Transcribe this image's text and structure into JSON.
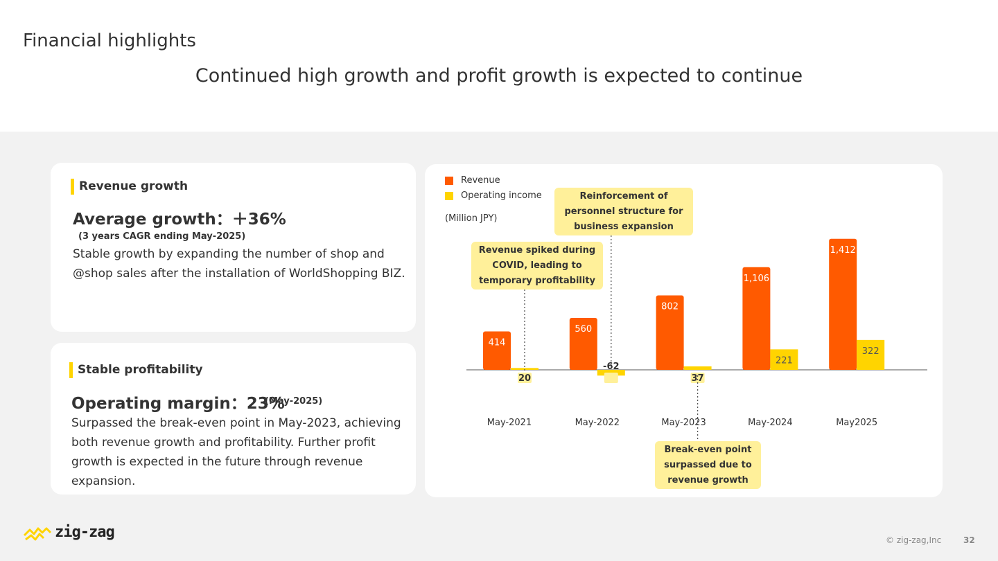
{
  "header": {
    "title": "Financial highlights",
    "subtitle": "Continued high growth and profit growth is expected to continue"
  },
  "revenue_card": {
    "title": "Revenue growth",
    "metric": "Average growth：＋36%",
    "note": "(3 years CAGR ending May-2025)",
    "body": "Stable growth by expanding the number of shop and @shop sales after the installation of WorldShopping BIZ."
  },
  "profit_card": {
    "title": "Stable profitability",
    "metric": "Operating margin：23%",
    "note": "(May-2025)",
    "body": "Surpassed the break-even point in May-2023, achieving both revenue growth and profitability. Further profit growth is expected in the future through revenue expansion."
  },
  "chart_data": {
    "type": "bar",
    "categories": [
      "May-2021",
      "May-2022",
      "May-2023",
      "May-2024",
      "May2025"
    ],
    "series": [
      {
        "name": "Revenue",
        "values": [
          414,
          560,
          802,
          1106,
          1412
        ],
        "color": "#ff5a00"
      },
      {
        "name": "Operating income",
        "values": [
          20,
          -62,
          37,
          221,
          322
        ],
        "color": "#ffd400"
      }
    ],
    "value_labels": {
      "Revenue": [
        "414",
        "560",
        "802",
        "1,106",
        "1,412"
      ],
      "Operating income": [
        "20",
        "-62",
        "37",
        "221",
        "322"
      ]
    },
    "unit": "(Million JPY)",
    "legend_position": "top-left",
    "grid": false,
    "annotations": [
      {
        "text": "Revenue spiked during\nCOVID, leading to\ntemporary profitability",
        "category": "May-2021",
        "series": "Operating income"
      },
      {
        "text": "Reinforcement of\npersonnel structure for\nbusiness expansion",
        "category": "May-2022",
        "series": "Operating income"
      },
      {
        "text": "Break-even point\nsurpassed due to\nrevenue growth",
        "category": "May-2023",
        "series": "Operating income"
      }
    ]
  },
  "footer": {
    "logo_text": "zig-zag",
    "copyright": "© zig-zag,Inc",
    "page_number": "32"
  },
  "colors": {
    "accent_orange": "#ff5a00",
    "accent_yellow": "#ffd400",
    "callout_bg": "#fff09a",
    "band_bg": "#f2f2f2"
  }
}
